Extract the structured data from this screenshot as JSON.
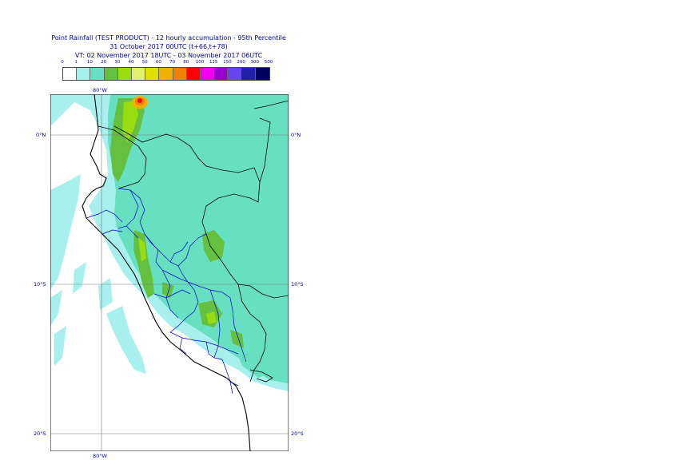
{
  "title": {
    "line1": "Point Rainfall (TEST PRODUCT) - 12 hourly accumulation - 95th Percentile",
    "line2": "31 October 2017 00UTC (t+66,t+78)",
    "line3": "VT: 02 November 2017 18UTC - 03 November 2017 06UTC"
  },
  "legend": {
    "labels": [
      "0",
      "1",
      "10",
      "20",
      "30",
      "40",
      "50",
      "60",
      "70",
      "80",
      "100",
      "125",
      "150",
      "200",
      "300",
      "500"
    ],
    "colors": [
      "#ffffff",
      "#a8f0ee",
      "#66e0c0",
      "#66c040",
      "#99dd10",
      "#e0f070",
      "#e0e000",
      "#f0b000",
      "#f08000",
      "#ff0000",
      "#ee00ee",
      "#9900cc",
      "#6644ee",
      "#2020aa",
      "#000060"
    ]
  },
  "coords": {
    "lon_top": "80°W",
    "lon_bottom": "80°W",
    "lat_0_left": "0°N",
    "lat_0_right": "0°N",
    "lat_10_left": "10°S",
    "lat_10_right": "10°S",
    "lat_20_left": "20°S",
    "lat_20_right": "20°S"
  }
}
